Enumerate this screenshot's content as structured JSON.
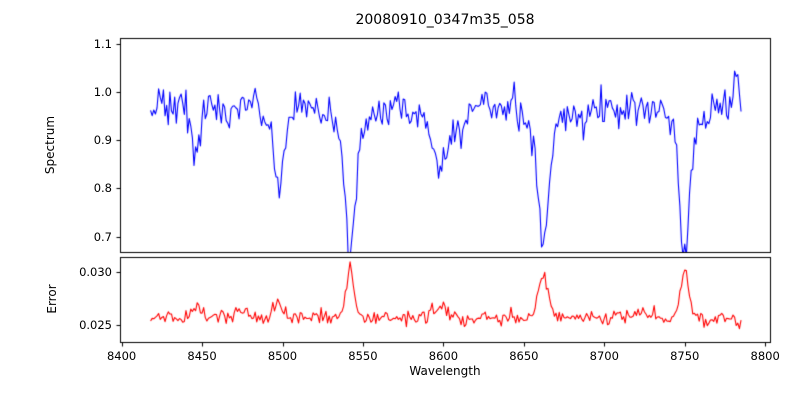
{
  "figure": {
    "title": "20080910_0347m35_058",
    "background": "#ffffff"
  },
  "chart_data": [
    {
      "type": "line",
      "panel": "spectrum",
      "title": "20080910_0347m35_058",
      "xlabel": "Wavelength",
      "ylabel": "Spectrum",
      "line_color": "#0000ff",
      "grid": false,
      "legend": null,
      "xlim": [
        8399,
        8803
      ],
      "ylim": [
        0.668,
        1.112
      ],
      "xtick_values": [
        8400,
        8450,
        8500,
        8550,
        8600,
        8650,
        8700,
        8750,
        8800
      ],
      "xtick_labels": [
        "8400",
        "8450",
        "8500",
        "8550",
        "8600",
        "8650",
        "8700",
        "8750",
        "8800"
      ],
      "ytick_values": [
        0.7,
        0.8,
        0.9,
        1.0,
        1.1
      ],
      "ytick_labels": [
        "0.7",
        "0.8",
        "0.9",
        "1.0",
        "1.1"
      ],
      "x_start": 8418,
      "x_end": 8785,
      "x_step": 1,
      "continuum_level": 0.975,
      "noise_sigma": 0.018,
      "absorption_lines": [
        {
          "center": 8446,
          "depth": 0.1,
          "sigma": 2.2,
          "wing_depth": 0.015,
          "wing_sigma": 6
        },
        {
          "center": 8467,
          "depth": 0.05,
          "sigma": 2.0,
          "wing_depth": 0.0,
          "wing_sigma": 6
        },
        {
          "center": 8498,
          "depth": 0.17,
          "sigma": 2.6,
          "wing_depth": 0.03,
          "wing_sigma": 7
        },
        {
          "center": 8542,
          "depth": 0.25,
          "sigma": 3.0,
          "wing_depth": 0.05,
          "wing_sigma": 12
        },
        {
          "center": 8582,
          "depth": 0.04,
          "sigma": 2.0,
          "wing_depth": 0.0,
          "wing_sigma": 6
        },
        {
          "center": 8598,
          "depth": 0.11,
          "sigma": 3.5,
          "wing_depth": 0.035,
          "wing_sigma": 10
        },
        {
          "center": 8611,
          "depth": 0.06,
          "sigma": 2.5,
          "wing_depth": 0.0,
          "wing_sigma": 6
        },
        {
          "center": 8662,
          "depth": 0.25,
          "sigma": 3.0,
          "wing_depth": 0.05,
          "wing_sigma": 12
        },
        {
          "center": 8688,
          "depth": 0.04,
          "sigma": 2.0,
          "wing_depth": 0.0,
          "wing_sigma": 6
        },
        {
          "center": 8750,
          "depth": 0.25,
          "sigma": 3.0,
          "wing_depth": 0.05,
          "wing_sigma": 13
        },
        {
          "center": 8782,
          "depth": -0.07,
          "sigma": 1.5,
          "wing_depth": 0.0,
          "wing_sigma": 6
        }
      ]
    },
    {
      "type": "line",
      "panel": "error",
      "ylabel": "Error",
      "line_color": "#ff0000",
      "grid": false,
      "legend": null,
      "ylim": [
        0.0234,
        0.0314
      ],
      "ytick_values": [
        0.025,
        0.03
      ],
      "ytick_labels": [
        "0.025",
        "0.030"
      ],
      "baseline_level": 0.0257,
      "noise_sigma": 0.00035,
      "error_peaks": [
        {
          "center": 8446,
          "height": 0.001,
          "sigma": 3.0
        },
        {
          "center": 8475,
          "height": 0.0006,
          "sigma": 5.0
        },
        {
          "center": 8498,
          "height": 0.0014,
          "sigma": 3.0
        },
        {
          "center": 8542,
          "height": 0.0045,
          "sigma": 2.5
        },
        {
          "center": 8598,
          "height": 0.001,
          "sigma": 4.0
        },
        {
          "center": 8662,
          "height": 0.0042,
          "sigma": 3.0
        },
        {
          "center": 8725,
          "height": 0.0008,
          "sigma": 4.0
        },
        {
          "center": 8750,
          "height": 0.0045,
          "sigma": 2.5
        },
        {
          "center": 8784,
          "height": -0.0012,
          "sigma": 1.5
        }
      ]
    }
  ]
}
